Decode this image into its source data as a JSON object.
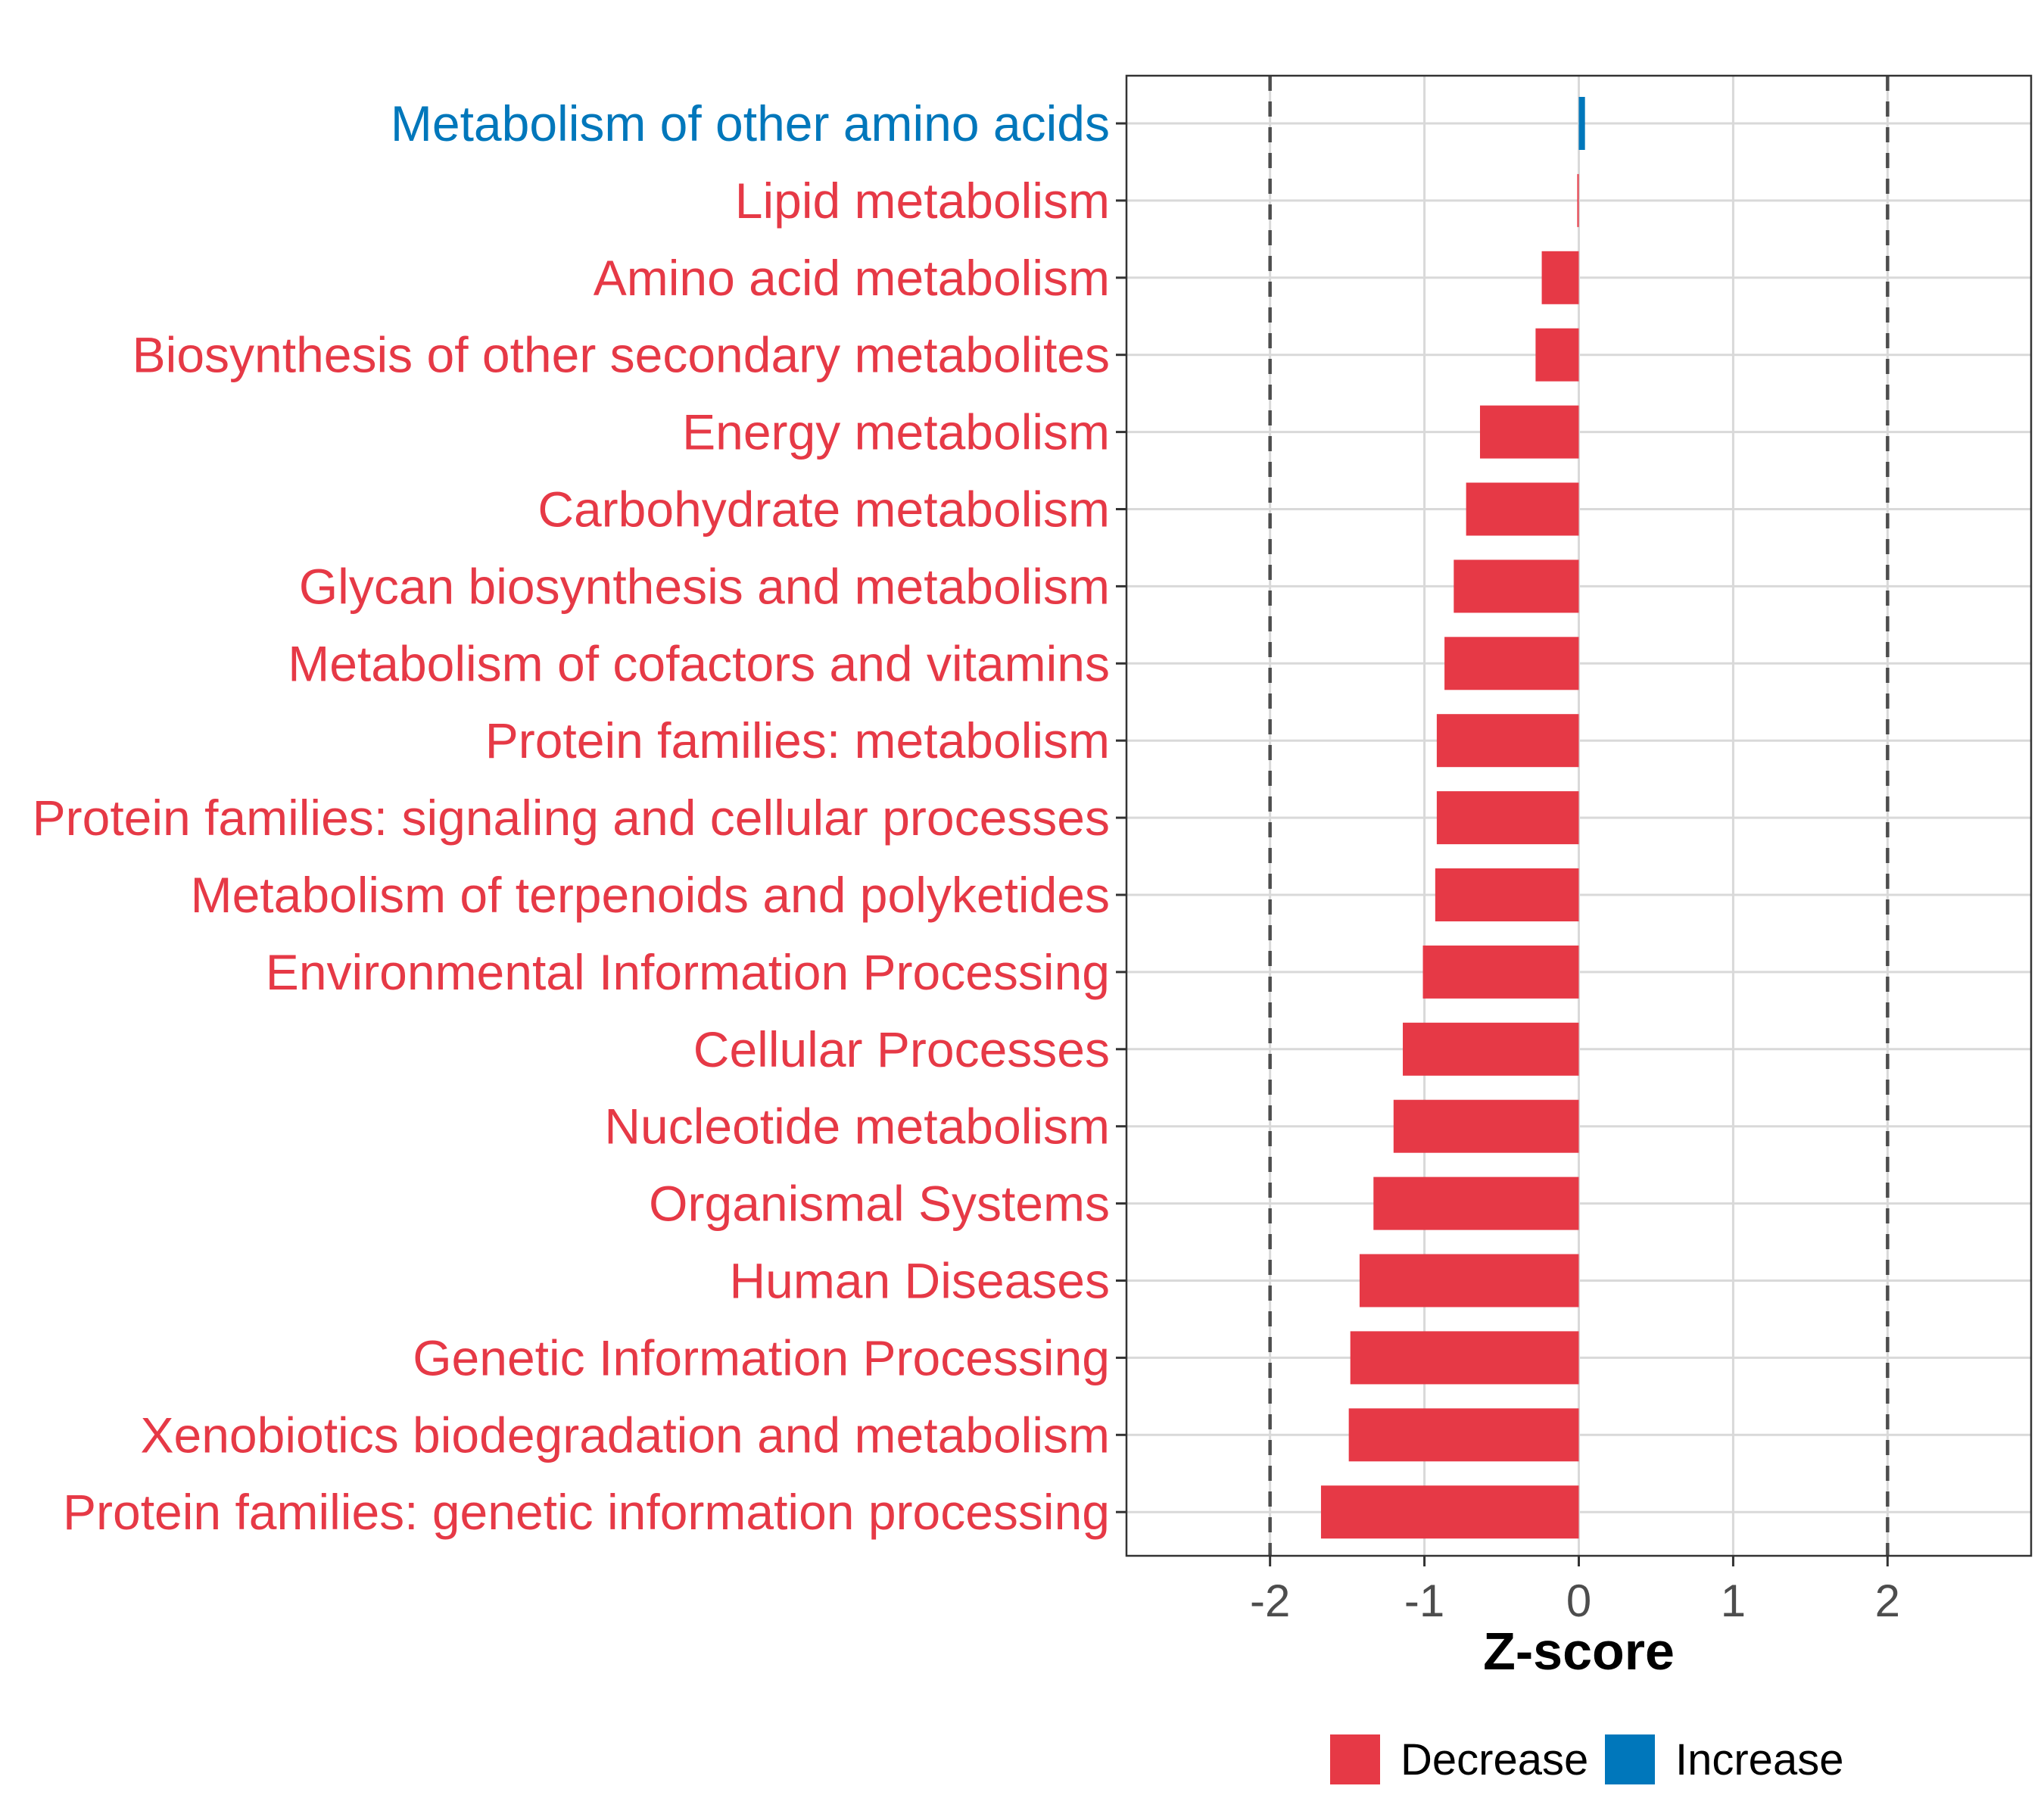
{
  "colors": {
    "decrease": "#E63946",
    "increase": "#0077BB",
    "grid": "#D9D9D9",
    "refline": "#4D4D4D"
  },
  "chart_data": {
    "type": "bar",
    "orientation": "horizontal",
    "xlabel": "Z-score",
    "xlim": [
      -2.93,
      2.93
    ],
    "xticks": [
      -2,
      -1,
      0,
      1,
      2
    ],
    "xtick_labels": [
      "-2",
      "-1",
      "0",
      "1",
      "2"
    ],
    "reference_lines": [
      -2,
      2
    ],
    "grid": true,
    "legend_position": "bottom",
    "legend": [
      {
        "label": "Decrease",
        "color_key": "decrease"
      },
      {
        "label": "Increase",
        "color_key": "increase"
      }
    ],
    "categories": [
      "Metabolism of other amino acids",
      "Lipid metabolism",
      "Amino acid metabolism",
      "Biosynthesis of other secondary metabolites",
      "Energy metabolism",
      "Carbohydrate metabolism",
      "Glycan biosynthesis and metabolism",
      "Metabolism of cofactors and vitamins",
      "Protein families: metabolism",
      "Protein families: signaling and cellular processes",
      "Metabolism of terpenoids and polyketides",
      "Environmental Information Processing",
      "Cellular Processes",
      "Nucleotide metabolism",
      "Organismal Systems",
      "Human Diseases",
      "Genetic Information Processing",
      "Xenobiotics biodegradation and metabolism",
      "Protein families: genetic information processing"
    ],
    "values": [
      0.04,
      -0.01,
      -0.24,
      -0.28,
      -0.64,
      -0.73,
      -0.81,
      -0.87,
      -0.92,
      -0.92,
      -0.93,
      -1.01,
      -1.14,
      -1.2,
      -1.33,
      -1.42,
      -1.48,
      -1.49,
      -1.67
    ],
    "direction": [
      "Increase",
      "Decrease",
      "Decrease",
      "Decrease",
      "Decrease",
      "Decrease",
      "Decrease",
      "Decrease",
      "Decrease",
      "Decrease",
      "Decrease",
      "Decrease",
      "Decrease",
      "Decrease",
      "Decrease",
      "Decrease",
      "Decrease",
      "Decrease",
      "Decrease"
    ]
  }
}
